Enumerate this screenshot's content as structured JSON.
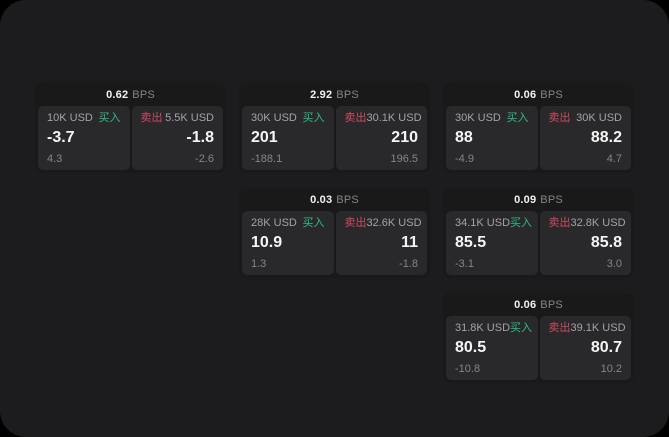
{
  "page": {
    "canvas_color": "#000000",
    "page_color": "#1c1c1e",
    "card_color": "#19191a",
    "tile_color": "#29292c",
    "buy_color": "#2ebd85",
    "sell_color": "#d1495f"
  },
  "labels": {
    "bps": "BPS",
    "buy": "买入",
    "sell": "卖出"
  },
  "cards": [
    {
      "bps": "0.62",
      "row": 1,
      "col": 1,
      "buy": {
        "amount": "10K USD",
        "price": "-3.7",
        "delta": "4.3"
      },
      "sell": {
        "amount": "5.5K USD",
        "price": "-1.8",
        "delta": "-2.6"
      }
    },
    {
      "bps": "2.92",
      "row": 1,
      "col": 2,
      "buy": {
        "amount": "30K USD",
        "price": "201",
        "delta": "-188.1"
      },
      "sell": {
        "amount": "30.1K USD",
        "price": "210",
        "delta": "196.5"
      }
    },
    {
      "bps": "0.06",
      "row": 1,
      "col": 3,
      "buy": {
        "amount": "30K USD",
        "price": "88",
        "delta": "-4.9"
      },
      "sell": {
        "amount": "30K USD",
        "price": "88.2",
        "delta": "4.7"
      }
    },
    {
      "bps": "0.03",
      "row": 2,
      "col": 2,
      "buy": {
        "amount": "28K USD",
        "price": "10.9",
        "delta": "1.3"
      },
      "sell": {
        "amount": "32.6K USD",
        "price": "11",
        "delta": "-1.8"
      }
    },
    {
      "bps": "0.09",
      "row": 2,
      "col": 3,
      "buy": {
        "amount": "34.1K USD",
        "price": "85.5",
        "delta": "-3.1"
      },
      "sell": {
        "amount": "32.8K USD",
        "price": "85.8",
        "delta": "3.0"
      }
    },
    {
      "bps": "0.06",
      "row": 3,
      "col": 3,
      "buy": {
        "amount": "31.8K USD",
        "price": "80.5",
        "delta": "-10.8"
      },
      "sell": {
        "amount": "39.1K USD",
        "price": "80.7",
        "delta": "10.2"
      }
    }
  ]
}
